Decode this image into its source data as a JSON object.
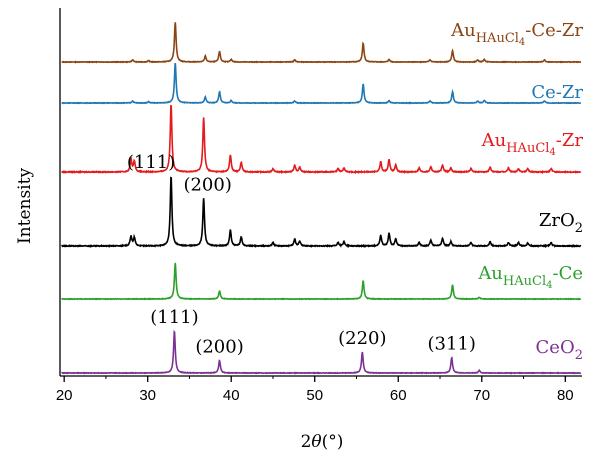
{
  "chart_data": {
    "type": "line",
    "xlabel": "2θ(°)",
    "ylabel": "Intensity",
    "xlim": [
      19.5,
      82
    ],
    "xticks": [
      20,
      30,
      40,
      50,
      60,
      70,
      80
    ],
    "grid": false,
    "series": [
      {
        "name": "Au_HAuCl4-Ce-Zr",
        "label_main": "Au",
        "label_sub": "HAuCl",
        "label_subsub": "4",
        "label_tail": "-Ce-Zr",
        "color": "#8B4513",
        "peaks": [
          [
            28.2,
            0.05
          ],
          [
            30.1,
            0.03
          ],
          [
            33.3,
            0.95
          ],
          [
            36.9,
            0.14
          ],
          [
            38.6,
            0.25
          ],
          [
            40.0,
            0.06
          ],
          [
            47.6,
            0.05
          ],
          [
            55.8,
            0.45
          ],
          [
            58.9,
            0.06
          ],
          [
            63.8,
            0.05
          ],
          [
            66.5,
            0.27
          ],
          [
            69.5,
            0.05
          ],
          [
            70.3,
            0.06
          ],
          [
            77.5,
            0.05
          ]
        ]
      },
      {
        "name": "Ce-Zr",
        "label_main": "Ce-Zr",
        "color": "#1F77B4",
        "peaks": [
          [
            28.2,
            0.05
          ],
          [
            30.1,
            0.03
          ],
          [
            33.3,
            1.0
          ],
          [
            36.9,
            0.15
          ],
          [
            38.6,
            0.28
          ],
          [
            40.0,
            0.06
          ],
          [
            47.6,
            0.05
          ],
          [
            55.8,
            0.47
          ],
          [
            58.9,
            0.06
          ],
          [
            63.8,
            0.05
          ],
          [
            66.5,
            0.28
          ],
          [
            69.5,
            0.05
          ],
          [
            70.3,
            0.06
          ],
          [
            77.5,
            0.05
          ]
        ]
      },
      {
        "name": "Au_HAuCl4-Zr",
        "label_main": "Au",
        "label_sub": "HAuCl",
        "label_subsub": "4",
        "label_tail": "-Zr",
        "color": "#E41A1C",
        "peaks": [
          [
            28.0,
            0.18
          ],
          [
            28.4,
            0.16
          ],
          [
            32.8,
            1.0
          ],
          [
            36.7,
            0.8
          ],
          [
            39.9,
            0.25
          ],
          [
            41.2,
            0.14
          ],
          [
            45.0,
            0.05
          ],
          [
            47.6,
            0.1
          ],
          [
            48.2,
            0.07
          ],
          [
            52.8,
            0.05
          ],
          [
            53.5,
            0.06
          ],
          [
            57.9,
            0.15
          ],
          [
            58.9,
            0.18
          ],
          [
            59.7,
            0.1
          ],
          [
            62.5,
            0.06
          ],
          [
            63.9,
            0.08
          ],
          [
            65.3,
            0.1
          ],
          [
            66.3,
            0.06
          ],
          [
            68.7,
            0.05
          ],
          [
            71.0,
            0.07
          ],
          [
            73.2,
            0.06
          ],
          [
            74.4,
            0.05
          ],
          [
            75.5,
            0.05
          ],
          [
            78.3,
            0.05
          ]
        ]
      },
      {
        "name": "ZrO2",
        "label_main": "ZrO",
        "label_sub": "2",
        "color": "#000000",
        "peaks": [
          [
            28.0,
            0.14
          ],
          [
            28.4,
            0.12
          ],
          [
            32.8,
            1.0
          ],
          [
            36.7,
            0.68
          ],
          [
            39.9,
            0.23
          ],
          [
            41.2,
            0.13
          ],
          [
            45.0,
            0.05
          ],
          [
            47.6,
            0.1
          ],
          [
            48.2,
            0.07
          ],
          [
            52.8,
            0.05
          ],
          [
            53.5,
            0.06
          ],
          [
            57.9,
            0.15
          ],
          [
            58.9,
            0.18
          ],
          [
            59.7,
            0.1
          ],
          [
            62.5,
            0.05
          ],
          [
            63.9,
            0.08
          ],
          [
            65.3,
            0.11
          ],
          [
            66.3,
            0.06
          ],
          [
            68.7,
            0.05
          ],
          [
            71.0,
            0.06
          ],
          [
            73.2,
            0.05
          ],
          [
            74.4,
            0.05
          ],
          [
            75.5,
            0.04
          ],
          [
            78.3,
            0.05
          ]
        ],
        "annotations": [
          [
            "(111)",
            32.8
          ],
          [
            "(200)",
            36.7
          ]
        ]
      },
      {
        "name": "Au_HAuCl4-Ce",
        "label_main": "Au",
        "label_sub": "HAuCl",
        "label_subsub": "4",
        "label_tail": "-Ce",
        "color": "#2CA02C",
        "peaks": [
          [
            33.3,
            0.9
          ],
          [
            38.6,
            0.2
          ],
          [
            55.8,
            0.45
          ],
          [
            66.5,
            0.35
          ],
          [
            69.7,
            0.04
          ]
        ]
      },
      {
        "name": "CeO2",
        "label_main": "CeO",
        "label_sub": "2",
        "color": "#7B3294",
        "peaks": [
          [
            33.2,
            1.0
          ],
          [
            38.6,
            0.3
          ],
          [
            55.7,
            0.5
          ],
          [
            66.4,
            0.37
          ],
          [
            69.7,
            0.06
          ]
        ],
        "annotations": [
          [
            "(111)",
            33.2
          ],
          [
            "(200)",
            38.6
          ],
          [
            "(220)",
            55.7
          ],
          [
            "(311)",
            66.4
          ]
        ]
      }
    ]
  }
}
